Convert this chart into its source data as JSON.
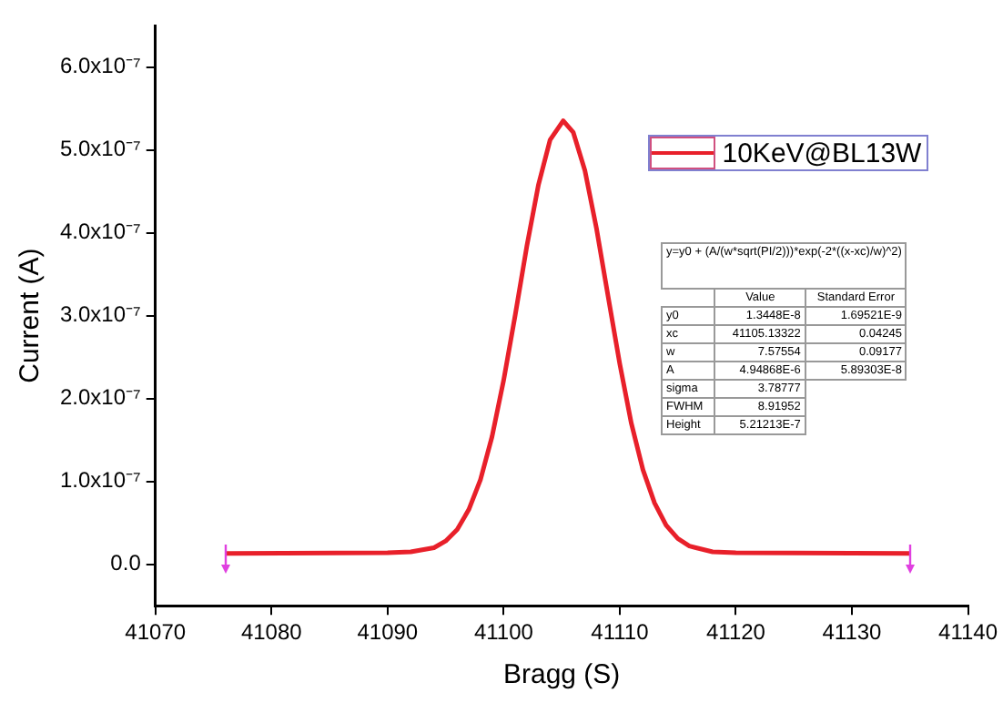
{
  "chart_data": {
    "type": "line",
    "xlabel": "Bragg (S)",
    "ylabel": "Current (A)",
    "xlim": [
      41070,
      41140
    ],
    "xticks": [
      41070,
      41080,
      41090,
      41100,
      41110,
      41120,
      41130,
      41140
    ],
    "ylim": [
      -5e-08,
      6.5e-07
    ],
    "yticks": [
      {
        "value": 0,
        "label": "0.0"
      },
      {
        "value": 1e-07,
        "label": "1.0x10⁻⁷"
      },
      {
        "value": 2e-07,
        "label": "2.0x10⁻⁷"
      },
      {
        "value": 3e-07,
        "label": "3.0x10⁻⁷"
      },
      {
        "value": 4e-07,
        "label": "4.0x10⁻⁷"
      },
      {
        "value": 5e-07,
        "label": "5.0x10⁻⁷"
      },
      {
        "value": 6e-07,
        "label": "6.0x10⁻⁷"
      }
    ],
    "grid": false,
    "legend": "top right",
    "marker": "none",
    "line_style": "solid",
    "x": [
      41076,
      41090,
      41092,
      41094,
      41095,
      41096,
      41097,
      41098,
      41099,
      41100,
      41101,
      41102,
      41103,
      41104,
      41105.13,
      41106,
      41107,
      41108,
      41109,
      41110,
      41111,
      41112,
      41113,
      41114,
      41115,
      41116,
      41118,
      41120,
      41135
    ],
    "series": [
      {
        "name": "10KeV@BL13W",
        "color": "#e8202a",
        "values": [
          1.3e-08,
          1.4e-08,
          1.5e-08,
          2e-08,
          2.8e-08,
          4.2e-08,
          6.6e-08,
          1.02e-07,
          1.54e-07,
          2.22e-07,
          3.01e-07,
          3.84e-07,
          4.58e-07,
          5.12e-07,
          5.35e-07,
          5.21e-07,
          4.75e-07,
          4.05e-07,
          3.23e-07,
          2.42e-07,
          1.7e-07,
          1.14e-07,
          7.4e-08,
          4.7e-08,
          3.1e-08,
          2.2e-08,
          1.5e-08,
          1.4e-08,
          1.3e-08
        ]
      }
    ],
    "annotations": [
      "y=y0 + (A/(w*sqrt(PI/2)))*exp(-2*((x-xc)/w)^2)",
      "Value",
      "Standard Error",
      "y0",
      "1.3448E-8",
      "1.69521E-9",
      "xc",
      "41105.13322",
      "0.04245",
      "w",
      "7.57554",
      "0.09177",
      "A",
      "4.94868E-6",
      "5.89303E-8",
      "sigma",
      "3.78777",
      "FWHM",
      "8.91952",
      "Height",
      "5.21213E-7"
    ]
  }
}
